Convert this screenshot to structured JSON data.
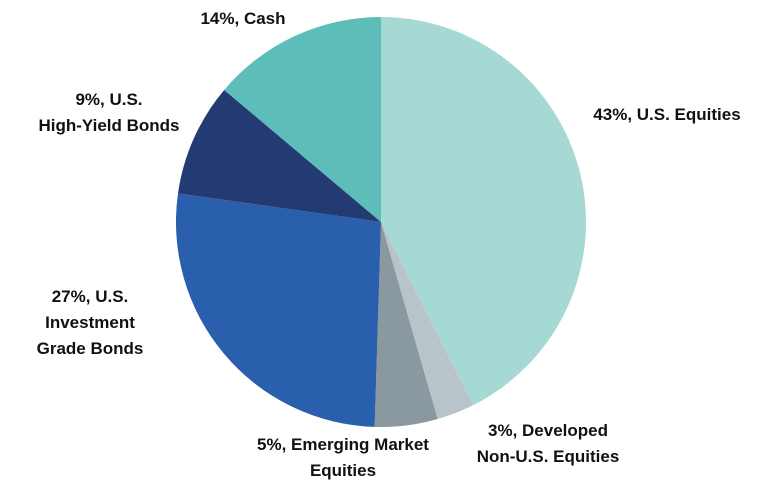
{
  "chart_data": {
    "type": "pie",
    "values": [
      43,
      3,
      5,
      27,
      9,
      14
    ],
    "value_labels": [
      "43%, U.S. Equities",
      "3%, Developed Non-U.S. Equities",
      "5%, Emerging Market Equities",
      "27%, U.S. Investment Grade Bonds",
      "9%, U.S. High-Yield Bonds",
      "14%, Cash"
    ],
    "colors": [
      "#a6d9d4",
      "#b9c4ca",
      "#8a989f",
      "#2a5fad",
      "#233a73",
      "#5dbdb9"
    ]
  }
}
